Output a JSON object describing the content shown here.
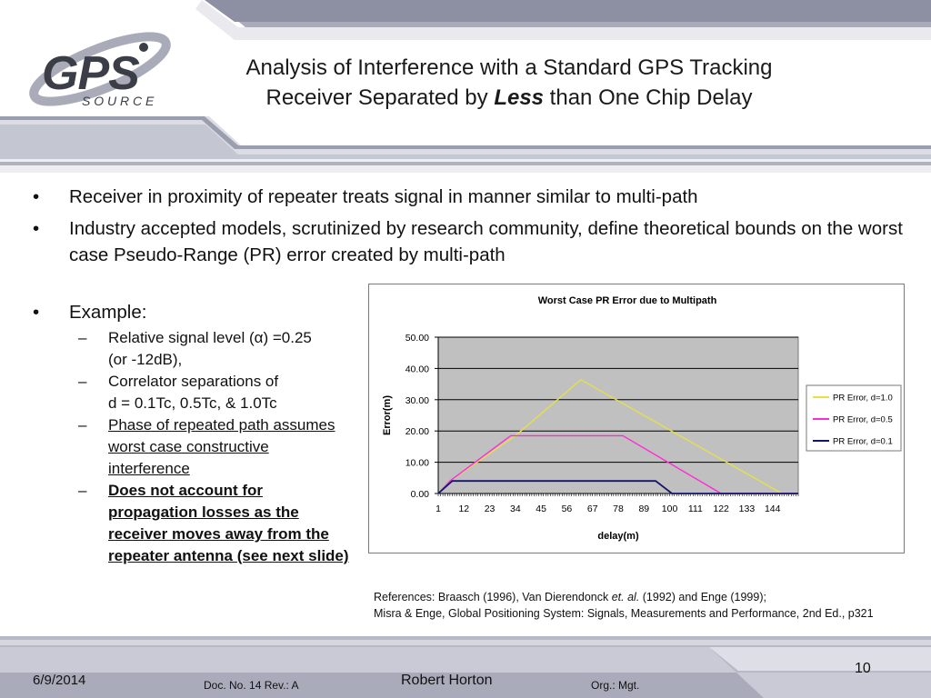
{
  "logo": {
    "main": "GPS",
    "sub": "S O U R C E"
  },
  "title": {
    "line1": "Analysis of Interference with a Standard GPS Tracking",
    "line2_pre": "Receiver Separated by ",
    "line2_em": "Less",
    "line2_post": " than One Chip Delay"
  },
  "bullets": [
    "Receiver in proximity of repeater treats signal in manner similar to multi-path",
    "Industry accepted models, scrutinized by research community, define theoretical bounds on the worst case Pseudo-Range (PR) error created by multi-path"
  ],
  "bullet_glyph": "•",
  "dash_glyph": "–",
  "example": {
    "label": "Example:",
    "items": [
      {
        "line1": "Relative signal level (α) =0.25",
        "line2": "(or -12dB),"
      },
      {
        "line1": "Correlator separations of",
        "line2": "d = 0.1Tc, 0.5Tc, & 1.0Tc"
      },
      {
        "text": "Phase of repeated path assumes worst case constructive interference"
      },
      {
        "text": "Does not account for propagation losses as the receiver moves away from the repeater antenna (see next slide)"
      }
    ]
  },
  "chart_data": {
    "type": "line",
    "title": "Worst Case PR Error due to Multipath",
    "xlabel": "delay(m)",
    "ylabel": "Error(m)",
    "x_tick_labels": [
      "1",
      "12",
      "23",
      "34",
      "45",
      "56",
      "67",
      "78",
      "89",
      "100",
      "111",
      "122",
      "133",
      "144"
    ],
    "xlim": [
      1,
      155
    ],
    "ylim": [
      0,
      50
    ],
    "y_ticks": [
      "0.00",
      "10.00",
      "20.00",
      "30.00",
      "40.00",
      "50.00"
    ],
    "grid": true,
    "legend_position": "right",
    "series": [
      {
        "name": "PR Error, d=1.0",
        "color": "#e5e04a",
        "points": [
          [
            1,
            0
          ],
          [
            6,
            4
          ],
          [
            34,
            18.5
          ],
          [
            62,
            36.4
          ],
          [
            148,
            0
          ],
          [
            155,
            0
          ]
        ]
      },
      {
        "name": "PR Error, d=0.5",
        "color": "#ff2bd6",
        "points": [
          [
            1,
            0
          ],
          [
            6,
            4
          ],
          [
            32,
            18.5
          ],
          [
            80,
            18.5
          ],
          [
            122,
            0
          ],
          [
            155,
            0
          ]
        ]
      },
      {
        "name": "PR Error, d=0.1",
        "color": "#14146e",
        "points": [
          [
            1,
            0
          ],
          [
            7,
            4
          ],
          [
            94,
            4
          ],
          [
            101,
            0
          ],
          [
            155,
            0
          ]
        ]
      }
    ]
  },
  "references": {
    "line1_pre": "References:  Braasch (1996), Van Dierendonck ",
    "line1_em": "et. al.",
    "line1_post": " (1992) and Enge (1999);",
    "line2": "Misra & Enge, Global Positioning System: Signals, Measurements and Performance, 2nd Ed., p321"
  },
  "footer": {
    "date": "6/9/2014",
    "doc": "Doc. No. 14  Rev.: A",
    "author": "Robert Horton",
    "org": "Org.: Mgt.",
    "page": "10"
  }
}
